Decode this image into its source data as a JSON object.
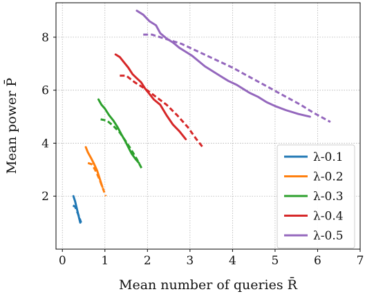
{
  "chart_data": {
    "type": "line",
    "xlabel": "Mean number of queries R̄",
    "ylabel": "Mean power P̄",
    "xlim": [
      -0.15,
      7
    ],
    "ylim": [
      0,
      9.3
    ],
    "xticks": [
      0,
      1,
      2,
      3,
      4,
      5,
      6,
      7
    ],
    "yticks": [
      2,
      4,
      6,
      8
    ],
    "grid": true,
    "legend_position": "lower-right",
    "series": [
      {
        "name": "λ-0.1",
        "color": "#1f77b4",
        "solid": [
          [
            0.26,
            2.0
          ],
          [
            0.3,
            1.8
          ],
          [
            0.33,
            1.6
          ],
          [
            0.36,
            1.4
          ],
          [
            0.39,
            1.2
          ],
          [
            0.42,
            1.0
          ]
        ],
        "dashed": [
          [
            0.25,
            1.65
          ],
          [
            0.3,
            1.6
          ],
          [
            0.35,
            1.4
          ],
          [
            0.4,
            1.2
          ],
          [
            0.44,
            1.0
          ]
        ]
      },
      {
        "name": "λ-0.2",
        "color": "#ff7f0e",
        "solid": [
          [
            0.55,
            3.85
          ],
          [
            0.6,
            3.65
          ],
          [
            0.67,
            3.45
          ],
          [
            0.75,
            3.2
          ],
          [
            0.82,
            2.95
          ],
          [
            0.88,
            2.65
          ],
          [
            0.94,
            2.35
          ]
        ],
        "dashed": [
          [
            0.6,
            3.25
          ],
          [
            0.7,
            3.2
          ],
          [
            0.8,
            2.9
          ],
          [
            0.88,
            2.6
          ],
          [
            0.95,
            2.3
          ],
          [
            1.02,
            2.0
          ]
        ]
      },
      {
        "name": "λ-0.3",
        "color": "#2ca02c",
        "solid": [
          [
            0.85,
            5.65
          ],
          [
            0.92,
            5.45
          ],
          [
            1.0,
            5.3
          ],
          [
            1.1,
            5.05
          ],
          [
            1.2,
            4.85
          ],
          [
            1.3,
            4.6
          ],
          [
            1.38,
            4.35
          ],
          [
            1.47,
            4.1
          ],
          [
            1.55,
            3.85
          ],
          [
            1.63,
            3.6
          ],
          [
            1.72,
            3.4
          ],
          [
            1.8,
            3.25
          ]
        ],
        "dashed": [
          [
            0.9,
            4.9
          ],
          [
            1.05,
            4.85
          ],
          [
            1.2,
            4.65
          ],
          [
            1.35,
            4.4
          ],
          [
            1.5,
            4.05
          ],
          [
            1.62,
            3.75
          ],
          [
            1.75,
            3.4
          ],
          [
            1.88,
            3.0
          ]
        ]
      },
      {
        "name": "λ-0.4",
        "color": "#d62728",
        "solid": [
          [
            1.25,
            7.35
          ],
          [
            1.35,
            7.25
          ],
          [
            1.45,
            7.05
          ],
          [
            1.55,
            6.85
          ],
          [
            1.65,
            6.6
          ],
          [
            1.75,
            6.45
          ],
          [
            1.85,
            6.3
          ],
          [
            1.95,
            6.05
          ],
          [
            2.05,
            5.85
          ],
          [
            2.15,
            5.65
          ],
          [
            2.3,
            5.45
          ],
          [
            2.45,
            5.05
          ],
          [
            2.6,
            4.7
          ],
          [
            2.75,
            4.45
          ],
          [
            2.9,
            4.15
          ]
        ],
        "dashed": [
          [
            1.35,
            6.55
          ],
          [
            1.5,
            6.55
          ],
          [
            1.7,
            6.3
          ],
          [
            1.95,
            6.05
          ],
          [
            2.2,
            5.75
          ],
          [
            2.45,
            5.45
          ],
          [
            2.7,
            5.05
          ],
          [
            2.95,
            4.6
          ],
          [
            3.15,
            4.15
          ],
          [
            3.3,
            3.85
          ]
        ]
      },
      {
        "name": "λ-0.5",
        "color": "#9467bd",
        "solid": [
          [
            1.75,
            9.0
          ],
          [
            1.9,
            8.85
          ],
          [
            2.05,
            8.6
          ],
          [
            2.2,
            8.45
          ],
          [
            2.3,
            8.15
          ],
          [
            2.45,
            7.95
          ],
          [
            2.6,
            7.8
          ],
          [
            2.75,
            7.6
          ],
          [
            2.9,
            7.45
          ],
          [
            3.05,
            7.3
          ],
          [
            3.2,
            7.1
          ],
          [
            3.35,
            6.9
          ],
          [
            3.5,
            6.75
          ],
          [
            3.7,
            6.55
          ],
          [
            3.9,
            6.35
          ],
          [
            4.1,
            6.2
          ],
          [
            4.25,
            6.05
          ],
          [
            4.4,
            5.9
          ],
          [
            4.6,
            5.75
          ],
          [
            4.8,
            5.55
          ],
          [
            5.0,
            5.4
          ],
          [
            5.25,
            5.25
          ],
          [
            5.55,
            5.1
          ],
          [
            5.82,
            5.0
          ]
        ],
        "dashed": [
          [
            1.9,
            8.1
          ],
          [
            2.1,
            8.1
          ],
          [
            2.4,
            7.95
          ],
          [
            2.8,
            7.75
          ],
          [
            3.2,
            7.45
          ],
          [
            3.6,
            7.15
          ],
          [
            4.0,
            6.85
          ],
          [
            4.4,
            6.5
          ],
          [
            4.8,
            6.15
          ],
          [
            5.2,
            5.8
          ],
          [
            5.6,
            5.45
          ],
          [
            5.9,
            5.15
          ],
          [
            6.3,
            4.8
          ]
        ]
      }
    ]
  }
}
